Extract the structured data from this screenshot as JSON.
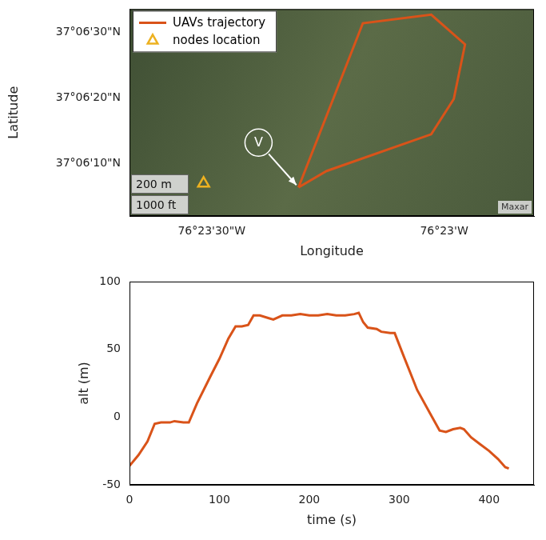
{
  "chart_data": [
    {
      "type": "scatter",
      "x_label": "Longitude",
      "y_label": "Latitude",
      "xlim": [
        -76.394611,
        -76.380111
      ],
      "ylim": [
        37.100528,
        37.109333
      ],
      "xticks": [
        {
          "value": -76.391667,
          "label": "76°23'30\"W"
        },
        {
          "value": -76.383333,
          "label": "76°23'W"
        }
      ],
      "yticks": [
        {
          "value": 37.102778,
          "label": "37°06'10\"N"
        },
        {
          "value": 37.105556,
          "label": "37°06'20\"N"
        },
        {
          "value": 37.108333,
          "label": "37°06'30\"N"
        }
      ],
      "grid": false,
      "legend": "upper left",
      "annotations": [
        "V"
      ],
      "scale_bar": [
        "200 m",
        "1000 ft"
      ],
      "credit": "Maxar",
      "series": [
        {
          "name": "UAVs trajectory",
          "type": "line",
          "color": "#D95319",
          "line_style": "solid",
          "x": [
            -76.388553,
            -76.387544,
            -76.383795,
            -76.382987,
            -76.382584,
            -76.383795,
            -76.386246,
            -76.388553
          ],
          "values": [
            37.101747,
            37.102444,
            37.104008,
            37.105506,
            37.107833,
            37.109097,
            37.108733,
            37.101747
          ]
        },
        {
          "name": "nodes location",
          "type": "scatter",
          "color": "#EDB120",
          "marker": "triangle",
          "x": [
            -76.391955
          ],
          "values": [
            37.101914
          ]
        }
      ]
    },
    {
      "type": "line",
      "x_label": "time (s)",
      "y_label": "alt (m)",
      "xlim": [
        0,
        450
      ],
      "ylim": [
        -50,
        100
      ],
      "xticks": [
        0,
        100,
        200,
        300,
        400
      ],
      "yticks": [
        -50,
        0,
        50,
        100
      ],
      "grid": false,
      "series": [
        {
          "color": "#D95319",
          "line_style": "solid",
          "x": [
            0,
            10,
            20,
            28,
            35,
            45,
            50,
            60,
            66,
            75,
            90,
            100,
            110,
            118,
            125,
            132,
            138,
            145,
            155,
            160,
            170,
            180,
            190,
            200,
            210,
            220,
            230,
            240,
            250,
            255,
            260,
            265,
            275,
            280,
            290,
            295,
            305,
            320,
            335,
            345,
            352,
            360,
            368,
            372,
            380,
            390,
            400,
            410,
            418,
            422
          ],
          "values": [
            -36,
            -28,
            -18,
            -5,
            -4,
            -4,
            -3,
            -4,
            -4,
            10,
            30,
            43,
            58,
            67,
            67,
            68,
            75,
            75,
            73,
            72,
            75,
            75,
            76,
            75,
            75,
            76,
            75,
            75,
            76,
            77,
            70,
            66,
            65,
            63,
            62,
            62,
            45,
            20,
            2,
            -10,
            -11,
            -9,
            -8,
            -9,
            -15,
            -20,
            -25,
            -31,
            -37,
            -38
          ]
        }
      ]
    }
  ]
}
